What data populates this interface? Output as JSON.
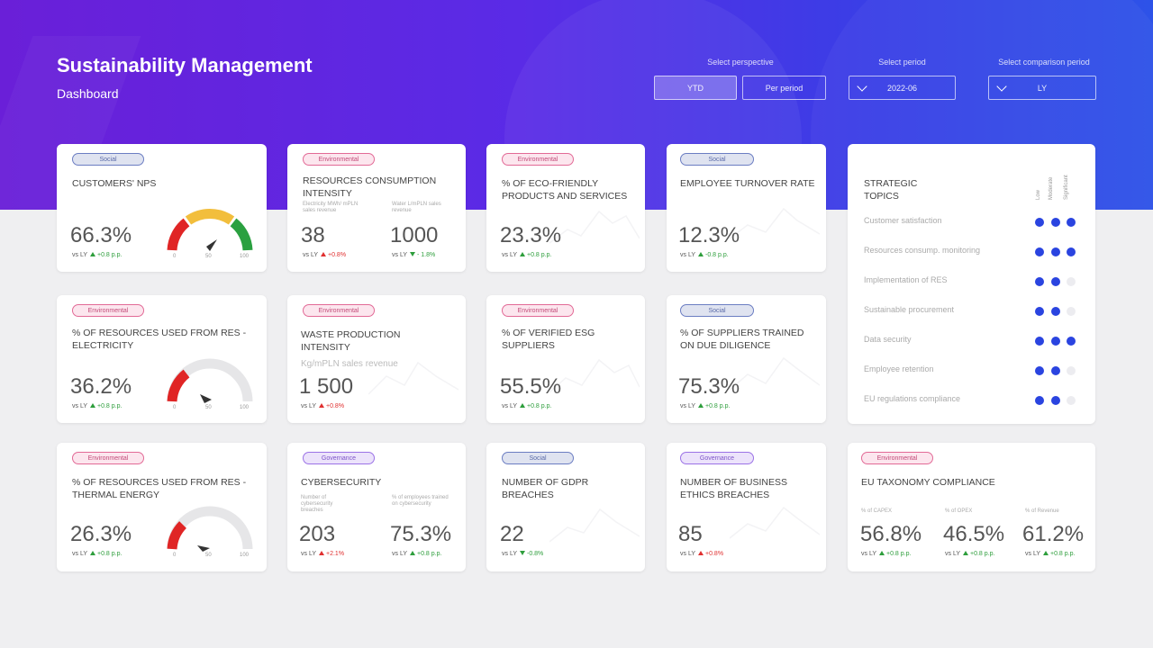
{
  "header": {
    "title": "Sustainability Management",
    "subtitle": "Dashboard"
  },
  "filters": {
    "perspective_label": "Select perspective",
    "perspective_options": [
      "YTD",
      "Per period"
    ],
    "perspective_selected": "YTD",
    "period_label": "Select period",
    "period_value": "2022-06",
    "comparison_label": "Select comparison period",
    "comparison_value": "LY"
  },
  "colors": {
    "up": "#2e9e3c",
    "down": "#e03030",
    "accent": "#2a44e0"
  },
  "cards": {
    "nps": {
      "tag": "Social",
      "title": "CUSTOMERS' NPS",
      "value": "66.3%",
      "vs": "vs LY",
      "delta": "+0.8 p.p.",
      "dir": "up",
      "gauge": {
        "min": "0",
        "mid": "50",
        "max": "100"
      }
    },
    "resources": {
      "tag": "Environmental",
      "title": "RESOURCES CONSUMPTION INTENSITY",
      "a_label": "Electricity MWh/ mPLN sales revenue",
      "a_value": "38",
      "a_vs": "vs LY",
      "a_delta": "+0.8%",
      "a_dir": "down",
      "b_label": "Water L/mPLN sales revenue",
      "b_value": "1000",
      "b_vs": "vs LY",
      "b_delta": "- 1.8%",
      "b_dir": "up"
    },
    "eco": {
      "tag": "Environmental",
      "title": "% OF ECO-FRIENDLY PRODUCTS AND SERVICES",
      "value": "23.3%",
      "vs": "vs LY",
      "delta": "+0.8 p.p.",
      "dir": "up"
    },
    "turnover": {
      "tag": "Social",
      "title": "EMPLOYEE TURNOVER RATE",
      "value": "12.3%",
      "vs": "vs LY",
      "delta": "-0.8 p.p.",
      "dir": "up"
    },
    "res_elec": {
      "tag": "Environmental",
      "title": "% OF RESOURCES USED FROM RES - ELECTRICITY",
      "value": "36.2%",
      "vs": "vs LY",
      "delta": "+0.8 p.p.",
      "dir": "up",
      "gauge": {
        "min": "0",
        "mid": "50",
        "max": "100"
      }
    },
    "waste": {
      "tag": "Environmental",
      "title": "WASTE PRODUCTION INTENSITY",
      "unit": "Kg/mPLN sales revenue",
      "value": "1 500",
      "vs": "vs LY",
      "delta": "+0.8%",
      "dir": "down"
    },
    "esg": {
      "tag": "Environmental",
      "title": "% OF VERIFIED ESG SUPPLIERS",
      "value": "55.5%",
      "vs": "vs LY",
      "delta": "+0.8 p.p.",
      "dir": "up"
    },
    "trained": {
      "tag": "Social",
      "title": "% OF SUPPLIERS TRAINED ON DUE DILIGENCE",
      "value": "75.3%",
      "vs": "vs LY",
      "delta": "+0.8 p.p.",
      "dir": "up"
    },
    "res_thermal": {
      "tag": "Environmental",
      "title": "% OF RESOURCES USED FROM RES - THERMAL ENERGY",
      "value": "26.3%",
      "vs": "vs LY",
      "delta": "+0.8 p.p.",
      "dir": "up",
      "gauge": {
        "min": "0",
        "mid": "50",
        "max": "100"
      }
    },
    "cyber": {
      "tag": "Governance",
      "title": "CYBERSECURITY",
      "a_label": "Number of cybersecurity breaches",
      "a_value": "203",
      "a_vs": "vs LY",
      "a_delta": "+2.1%",
      "a_dir": "down",
      "b_label": "% of employees trained on cybersecurity",
      "b_value": "75.3%",
      "b_vs": "vs LY",
      "b_delta": "+0.8 p.p.",
      "b_dir": "up"
    },
    "gdpr": {
      "tag": "Social",
      "title": "NUMBER OF GDPR BREACHES",
      "value": "22",
      "vs": "vs LY",
      "delta": "-0.8%",
      "dir": "up"
    },
    "ethics": {
      "tag": "Governance",
      "title": "NUMBER OF BUSINESS ETHICS BREACHES",
      "value": "85",
      "vs": "vs LY",
      "delta": "+0.8%",
      "dir": "down"
    },
    "taxonomy": {
      "tag": "Environmental",
      "title": "EU TAXONOMY COMPLIANCE",
      "items": [
        {
          "label": "% of CAPEX",
          "value": "56.8%",
          "vs": "vs LY",
          "delta": "+0.8 p.p.",
          "dir": "up"
        },
        {
          "label": "% of OPEX",
          "value": "46.5%",
          "vs": "vs LY",
          "delta": "+0.8 p.p.",
          "dir": "up"
        },
        {
          "label": "% of Revenue",
          "value": "61.2%",
          "vs": "vs LY",
          "delta": "+0.8 p.p.",
          "dir": "up"
        }
      ]
    }
  },
  "strategic": {
    "title": "STRATEGIC TOPICS",
    "columns": [
      "Low",
      "Moderate",
      "Significant"
    ],
    "topics": [
      {
        "name": "Customer satisfaction",
        "level": 3
      },
      {
        "name": "Resources consump. monitoring",
        "level": 3
      },
      {
        "name": "Implementation of RES",
        "level": 2
      },
      {
        "name": "Sustainable procurement",
        "level": 2
      },
      {
        "name": "Data security",
        "level": 3
      },
      {
        "name": "Employee retention",
        "level": 2
      },
      {
        "name": "EU regulations compliance",
        "level": 2
      }
    ]
  }
}
